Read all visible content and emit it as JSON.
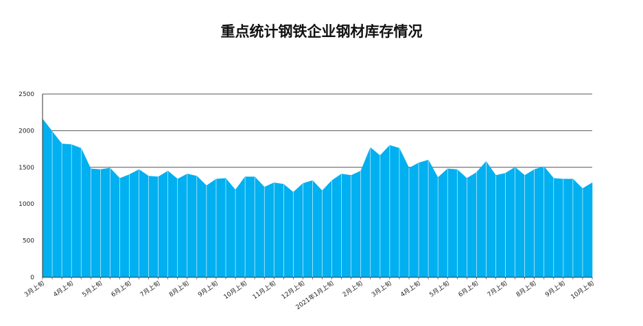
{
  "chart_data": {
    "type": "area",
    "title": "重点统计钢铁企业钢材库存情况",
    "xlabel": "",
    "ylabel": "",
    "ylim": [
      0,
      2500
    ],
    "yticks": [
      "0",
      "500",
      "1000",
      "1500",
      "2000",
      "2500"
    ],
    "grid": true,
    "fill_color": "#00b0f0",
    "edge_color": "#ffffff",
    "x_labels": [
      "3月上旬",
      "4月上旬",
      "5月上旬",
      "6月上旬",
      "7月上旬",
      "8月上旬",
      "9月上旬",
      "10月上旬",
      "11月上旬",
      "12月上旬",
      "2021年1月上旬",
      "2月上旬",
      "3月上旬",
      "4月上旬",
      "5月上旬",
      "6月上旬",
      "7月上旬",
      "8月上旬",
      "9月上旬",
      "10月上旬"
    ],
    "x_label_positions": [
      0,
      3,
      6,
      9,
      12,
      15,
      18,
      21,
      24,
      27,
      30,
      33,
      36,
      39,
      42,
      45,
      48,
      51,
      54,
      57
    ],
    "values": [
      2160,
      1990,
      1820,
      1810,
      1760,
      1480,
      1470,
      1490,
      1350,
      1400,
      1470,
      1380,
      1370,
      1450,
      1340,
      1410,
      1380,
      1250,
      1340,
      1350,
      1190,
      1370,
      1370,
      1230,
      1290,
      1270,
      1160,
      1280,
      1320,
      1180,
      1320,
      1410,
      1390,
      1450,
      1770,
      1660,
      1800,
      1760,
      1490,
      1560,
      1600,
      1360,
      1480,
      1470,
      1350,
      1430,
      1580,
      1390,
      1420,
      1500,
      1390,
      1470,
      1510,
      1350,
      1340,
      1340,
      1210,
      1290
    ]
  }
}
